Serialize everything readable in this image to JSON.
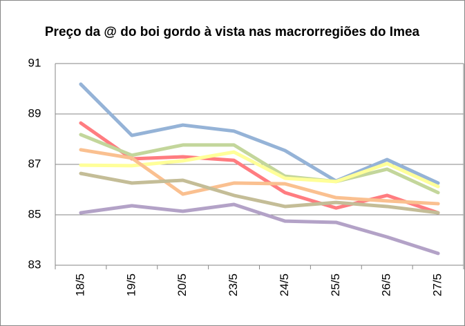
{
  "chart_data": {
    "type": "line",
    "title": "Preço da @ do boi gordo à vista nas macrorregiões do Imea",
    "categories": [
      "18/5",
      "19/5",
      "20/5",
      "23/5",
      "24/5",
      "25/5",
      "26/5",
      "27/5"
    ],
    "series": [
      {
        "color": "#95b3d7",
        "values": [
          90.18,
          88.15,
          88.56,
          88.32,
          87.55,
          86.34,
          87.19,
          86.26
        ]
      },
      {
        "color": "#ff7c80",
        "values": [
          88.64,
          87.22,
          87.3,
          87.16,
          85.88,
          85.27,
          85.77,
          85.08
        ]
      },
      {
        "color": "#c3d69b",
        "values": [
          88.18,
          87.36,
          87.77,
          87.77,
          86.53,
          86.32,
          86.81,
          85.88
        ]
      },
      {
        "color": "#ffff99",
        "values": [
          86.97,
          86.95,
          87.14,
          87.49,
          86.45,
          86.32,
          87.03,
          86.12
        ]
      },
      {
        "color": "#fac090",
        "values": [
          87.58,
          87.25,
          85.82,
          86.26,
          86.23,
          85.68,
          85.55,
          85.44
        ]
      },
      {
        "color": "#c4bd97",
        "values": [
          86.64,
          86.26,
          86.37,
          85.77,
          85.33,
          85.49,
          85.33,
          85.08
        ]
      },
      {
        "color": "#b3a2c7",
        "values": [
          85.08,
          85.36,
          85.14,
          85.41,
          84.75,
          84.7,
          84.12,
          83.47
        ]
      }
    ],
    "ylim": [
      83,
      91
    ],
    "yticks": [
      83,
      85,
      87,
      89,
      91
    ],
    "grid": true
  }
}
